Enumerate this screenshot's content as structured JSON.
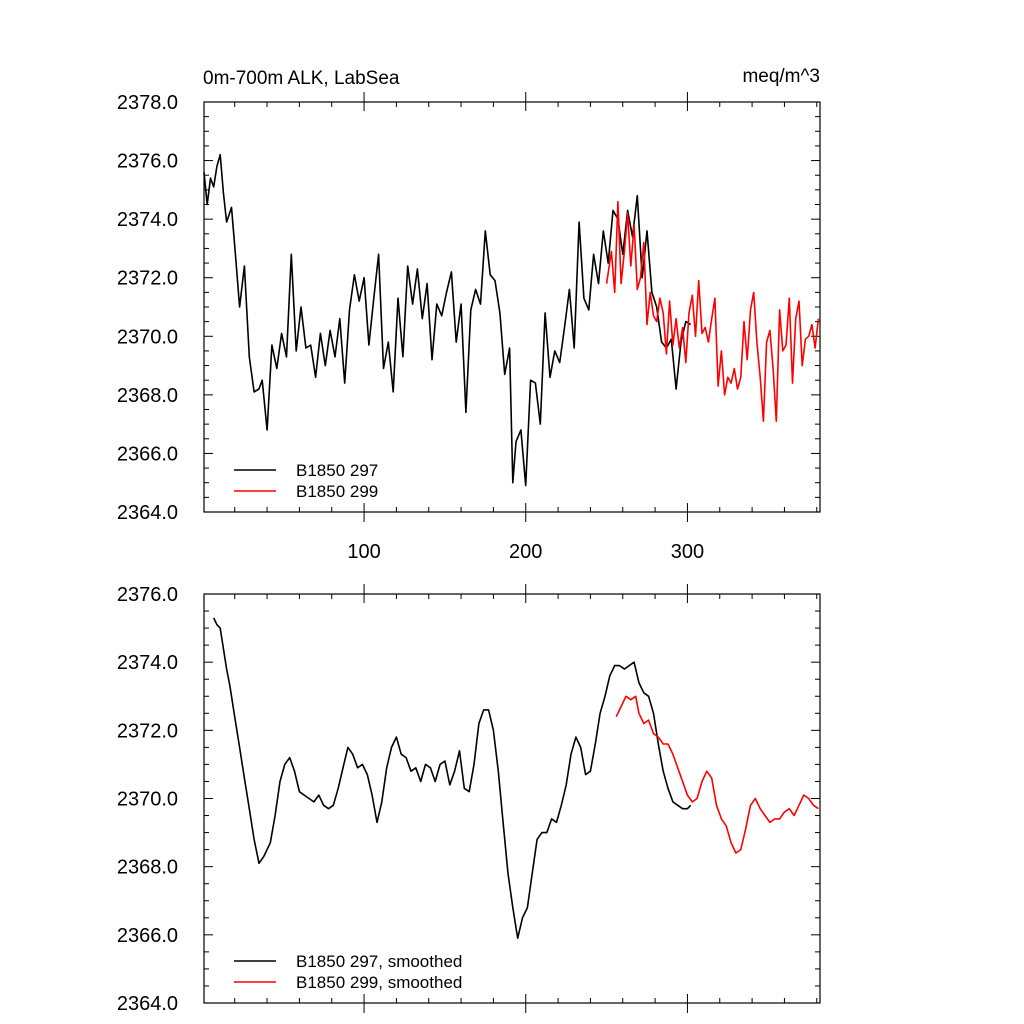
{
  "chart_data": [
    {
      "type": "line",
      "title": "0m-700m ALK, LabSea",
      "units": "meq/m^3",
      "xlabel": "",
      "ylabel": "",
      "xlim": [
        1,
        382
      ],
      "ylim": [
        2364.0,
        2378.0
      ],
      "yticks": [
        "2364.0",
        "2366.0",
        "2368.0",
        "2370.0",
        "2372.0",
        "2374.0",
        "2376.0",
        "2378.0"
      ],
      "xticks": [
        "100",
        "200",
        "300"
      ],
      "xtick_values": [
        100,
        200,
        300
      ],
      "grid": false,
      "legend_position": "bottom-left",
      "series": [
        {
          "name": "B1850 297",
          "color": "#000000",
          "x": [
            1,
            3,
            5,
            7,
            9,
            11,
            13,
            15,
            18,
            20,
            23,
            26,
            29,
            32,
            35,
            37,
            40,
            43,
            46,
            49,
            52,
            55,
            58,
            61,
            64,
            67,
            70,
            73,
            76,
            79,
            82,
            85,
            88,
            91,
            94,
            97,
            100,
            103,
            106,
            109,
            112,
            115,
            118,
            121,
            124,
            127,
            130,
            133,
            136,
            139,
            142,
            145,
            148,
            151,
            154,
            157,
            160,
            163,
            166,
            169,
            172,
            175,
            178,
            181,
            184,
            187,
            190,
            192,
            194,
            197,
            200,
            203,
            206,
            209,
            212,
            215,
            218,
            221,
            224,
            227,
            230,
            233,
            236,
            239,
            242,
            245,
            248,
            251,
            254,
            257,
            260,
            263,
            266,
            269,
            272,
            275,
            278,
            281,
            284,
            287,
            290,
            293,
            296,
            299,
            302
          ],
          "values": [
            2375.6,
            2374.5,
            2375.4,
            2375.1,
            2375.8,
            2376.2,
            2374.9,
            2373.9,
            2374.4,
            2373.1,
            2371.0,
            2372.4,
            2369.3,
            2368.1,
            2368.2,
            2368.5,
            2366.8,
            2369.7,
            2368.9,
            2370.1,
            2369.3,
            2372.8,
            2369.5,
            2371.0,
            2369.6,
            2369.7,
            2368.6,
            2370.1,
            2369.0,
            2370.2,
            2369.3,
            2370.6,
            2368.4,
            2370.9,
            2372.1,
            2371.2,
            2372.0,
            2369.7,
            2371.3,
            2372.8,
            2368.9,
            2369.8,
            2368.1,
            2371.3,
            2369.3,
            2372.4,
            2371.1,
            2372.3,
            2370.6,
            2371.8,
            2369.2,
            2371.1,
            2370.7,
            2371.5,
            2372.2,
            2369.8,
            2371.1,
            2367.4,
            2370.9,
            2371.6,
            2371.1,
            2373.6,
            2372.1,
            2371.9,
            2370.8,
            2368.7,
            2369.6,
            2365.0,
            2366.4,
            2366.8,
            2364.9,
            2368.5,
            2368.4,
            2367.0,
            2370.8,
            2368.6,
            2369.5,
            2369.1,
            2370.3,
            2371.6,
            2369.6,
            2373.9,
            2371.3,
            2370.9,
            2372.8,
            2371.8,
            2373.6,
            2372.5,
            2374.3,
            2374.0,
            2372.8,
            2374.3,
            2373.4,
            2374.8,
            2372.0,
            2373.6,
            2371.5,
            2371.0,
            2369.8,
            2369.6,
            2369.9,
            2368.2,
            2369.8,
            2370.5,
            2370.4
          ]
        },
        {
          "name": "B1850 299",
          "color": "#ff0000",
          "x": [
            250,
            253,
            255,
            257,
            259,
            261,
            263,
            265,
            267,
            269,
            271,
            273,
            275,
            277,
            279,
            281,
            283,
            285,
            287,
            289,
            291,
            293,
            295,
            297,
            299,
            301,
            303,
            305,
            307,
            309,
            311,
            313,
            315,
            317,
            319,
            321,
            323,
            325,
            327,
            329,
            331,
            333,
            335,
            337,
            339,
            341,
            343,
            345,
            347,
            349,
            351,
            353,
            355,
            357,
            359,
            361,
            363,
            365,
            367,
            369,
            371,
            373,
            375,
            377,
            379,
            381
          ],
          "values": [
            2371.8,
            2372.9,
            2371.5,
            2374.6,
            2371.8,
            2372.9,
            2374.2,
            2372.4,
            2373.8,
            2371.6,
            2372.0,
            2373.2,
            2370.4,
            2371.5,
            2370.7,
            2370.5,
            2371.3,
            2370.8,
            2369.4,
            2371.2,
            2369.7,
            2370.6,
            2369.6,
            2370.3,
            2369.1,
            2370.8,
            2371.4,
            2370.0,
            2371.9,
            2370.1,
            2370.3,
            2369.8,
            2370.6,
            2371.3,
            2368.3,
            2369.5,
            2368.0,
            2368.6,
            2368.4,
            2368.9,
            2368.2,
            2368.6,
            2370.5,
            2369.2,
            2370.9,
            2371.5,
            2369.8,
            2368.6,
            2367.1,
            2369.8,
            2370.2,
            2368.9,
            2367.1,
            2370.9,
            2369.5,
            2369.7,
            2371.3,
            2368.4,
            2370.6,
            2371.2,
            2369.0,
            2369.9,
            2370.0,
            2370.4,
            2369.6,
            2370.6
          ]
        }
      ]
    },
    {
      "type": "line",
      "title": "",
      "xlabel": "",
      "ylabel": "",
      "xlim": [
        1,
        382
      ],
      "ylim": [
        2364.0,
        2376.0
      ],
      "yticks": [
        "2364.0",
        "2366.0",
        "2368.0",
        "2370.0",
        "2372.0",
        "2374.0",
        "2376.0"
      ],
      "xtick_values": [
        100,
        200,
        300
      ],
      "grid": false,
      "legend_position": "bottom-left",
      "series": [
        {
          "name": "B1850 297, smoothed",
          "color": "#000000",
          "x": [
            7,
            9,
            11,
            13,
            15,
            17,
            20,
            23,
            26,
            29,
            32,
            35,
            38,
            42,
            45,
            48,
            51,
            54,
            57,
            60,
            63,
            66,
            69,
            72,
            75,
            78,
            81,
            84,
            87,
            90,
            93,
            96,
            99,
            102,
            105,
            108,
            111,
            114,
            117,
            120,
            123,
            126,
            129,
            132,
            135,
            138,
            141,
            144,
            147,
            150,
            153,
            156,
            159,
            162,
            165,
            168,
            171,
            174,
            177,
            180,
            183,
            186,
            189,
            192,
            195,
            198,
            201,
            204,
            207,
            210,
            213,
            216,
            219,
            222,
            225,
            228,
            231,
            234,
            237,
            240,
            243,
            246,
            249,
            252,
            255,
            258,
            261,
            264,
            267,
            270,
            273,
            276,
            279,
            282,
            285,
            288,
            291,
            294,
            297,
            300,
            302
          ],
          "values": [
            2375.3,
            2375.1,
            2375.0,
            2374.4,
            2373.8,
            2373.3,
            2372.4,
            2371.5,
            2370.6,
            2369.7,
            2368.8,
            2368.1,
            2368.3,
            2368.7,
            2369.5,
            2370.5,
            2371.0,
            2371.2,
            2370.8,
            2370.2,
            2370.1,
            2370.0,
            2369.9,
            2370.1,
            2369.8,
            2369.7,
            2369.8,
            2370.3,
            2370.9,
            2371.5,
            2371.3,
            2370.9,
            2371.0,
            2370.7,
            2370.1,
            2369.3,
            2369.9,
            2370.9,
            2371.5,
            2371.8,
            2371.3,
            2371.2,
            2370.8,
            2370.9,
            2370.5,
            2371.0,
            2370.9,
            2370.5,
            2371.0,
            2371.1,
            2370.4,
            2370.8,
            2371.4,
            2370.3,
            2370.2,
            2371.0,
            2372.2,
            2372.6,
            2372.6,
            2372.0,
            2370.8,
            2369.3,
            2367.8,
            2366.8,
            2365.9,
            2366.5,
            2366.8,
            2367.8,
            2368.8,
            2369.0,
            2369.0,
            2369.4,
            2369.3,
            2369.8,
            2370.4,
            2371.3,
            2371.8,
            2371.5,
            2370.7,
            2370.8,
            2371.6,
            2372.5,
            2373.0,
            2373.6,
            2373.9,
            2373.9,
            2373.8,
            2373.9,
            2374.0,
            2373.4,
            2373.1,
            2373.0,
            2372.5,
            2371.6,
            2370.8,
            2370.3,
            2369.9,
            2369.8,
            2369.7,
            2369.7,
            2369.8
          ]
        },
        {
          "name": "B1850 299, smoothed",
          "color": "#ff0000",
          "x": [
            256,
            259,
            262,
            265,
            268,
            270,
            273,
            276,
            279,
            282,
            285,
            288,
            291,
            294,
            297,
            300,
            303,
            306,
            309,
            312,
            315,
            318,
            321,
            324,
            327,
            330,
            333,
            336,
            339,
            342,
            345,
            348,
            351,
            354,
            357,
            360,
            363,
            366,
            369,
            372,
            375,
            378,
            381
          ],
          "values": [
            2372.4,
            2372.7,
            2373.0,
            2372.9,
            2373.0,
            2372.5,
            2372.2,
            2372.3,
            2371.9,
            2371.8,
            2371.6,
            2371.6,
            2371.3,
            2370.9,
            2370.5,
            2370.1,
            2369.9,
            2370.0,
            2370.5,
            2370.8,
            2370.6,
            2369.8,
            2369.4,
            2369.2,
            2368.7,
            2368.4,
            2368.5,
            2369.1,
            2369.8,
            2370.0,
            2369.7,
            2369.5,
            2369.3,
            2369.4,
            2369.4,
            2369.6,
            2369.7,
            2369.5,
            2369.8,
            2370.1,
            2370.0,
            2369.8,
            2369.7
          ]
        }
      ]
    }
  ]
}
